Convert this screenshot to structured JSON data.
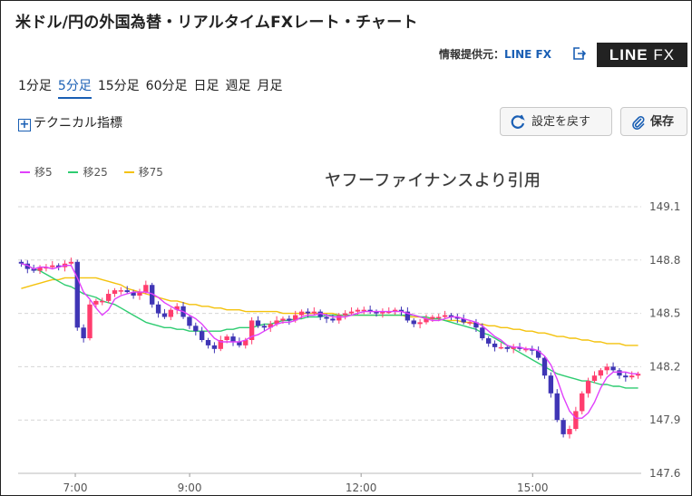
{
  "page": {
    "title": "米ドル/円の外国為替・リアルタイムFXレート・チャート",
    "provider_label": "情報提供元：",
    "provider_name": "LINE FX",
    "brand_logo_line": "LINE",
    "brand_logo_fx": "FX",
    "tabs": [
      {
        "label": "1分足",
        "active": false
      },
      {
        "label": "5分足",
        "active": true
      },
      {
        "label": "15分足",
        "active": false
      },
      {
        "label": "60分足",
        "active": false
      },
      {
        "label": "日足",
        "active": false
      },
      {
        "label": "週足",
        "active": false
      },
      {
        "label": "月足",
        "active": false
      }
    ],
    "technical_label": "テクニカル指標",
    "reset_label": "設定を戻す",
    "save_label": "保存",
    "watermark": "ヤフーファイナンスより引用",
    "colors": {
      "accent": "#1a5fb4",
      "up": "#ff3d6e",
      "down": "#3f35b5",
      "ma5": "#e040fb",
      "ma25": "#2ecc71",
      "ma75": "#f4c20d"
    }
  },
  "chart_data": {
    "type": "candlestick",
    "interval": "5分足",
    "x_ticks": [
      "7:00",
      "9:00",
      "12:00",
      "15:00"
    ],
    "x_tick_hours": [
      7,
      9,
      12,
      15
    ],
    "x_range_hours": [
      6.0,
      16.9
    ],
    "y_ticks": [
      149.1,
      148.8,
      148.5,
      148.2,
      147.9,
      147.6
    ],
    "ylim": [
      147.6,
      149.1
    ],
    "legend": [
      "移5",
      "移25",
      "移75"
    ],
    "close_series": [
      148.78,
      148.75,
      148.74,
      148.76,
      148.76,
      148.77,
      148.76,
      148.78,
      148.79,
      148.42,
      148.36,
      148.55,
      148.57,
      148.57,
      148.61,
      148.63,
      148.63,
      148.62,
      148.6,
      148.62,
      148.66,
      148.55,
      148.5,
      148.48,
      148.52,
      148.54,
      148.48,
      148.43,
      148.4,
      148.35,
      148.32,
      148.3,
      148.35,
      148.37,
      148.34,
      148.32,
      148.35,
      148.46,
      148.43,
      148.42,
      148.44,
      148.46,
      148.47,
      148.46,
      148.49,
      148.51,
      148.5,
      148.51,
      148.48,
      148.47,
      148.46,
      148.49,
      148.5,
      148.51,
      148.52,
      148.52,
      148.51,
      148.5,
      148.51,
      148.51,
      148.52,
      148.51,
      148.46,
      148.44,
      148.45,
      148.47,
      148.48,
      148.48,
      148.49,
      148.48,
      148.47,
      148.45,
      148.45,
      148.42,
      148.36,
      148.33,
      148.31,
      148.31,
      148.3,
      148.31,
      148.3,
      148.3,
      148.29,
      148.25,
      148.15,
      148.05,
      147.9,
      147.82,
      147.85,
      147.95,
      148.05,
      148.12,
      148.15,
      148.18,
      148.2,
      148.18,
      148.15,
      148.14,
      148.15,
      148.16
    ],
    "ma5": [
      148.78,
      148.77,
      148.75,
      148.76,
      148.76,
      148.75,
      148.76,
      148.77,
      148.77,
      148.7,
      148.62,
      148.58,
      148.53,
      148.49,
      148.52,
      148.58,
      148.6,
      148.61,
      148.62,
      148.62,
      148.62,
      148.61,
      148.59,
      148.56,
      148.54,
      148.52,
      148.51,
      148.49,
      148.47,
      148.44,
      148.4,
      148.36,
      148.34,
      148.34,
      148.34,
      148.34,
      148.35,
      148.37,
      148.38,
      148.4,
      148.42,
      148.44,
      148.45,
      148.45,
      148.46,
      148.48,
      148.49,
      148.49,
      148.5,
      148.49,
      148.48,
      148.48,
      148.48,
      148.49,
      148.5,
      148.51,
      148.51,
      148.51,
      148.51,
      148.51,
      148.51,
      148.51,
      148.5,
      148.49,
      148.48,
      148.47,
      148.46,
      148.46,
      148.47,
      148.48,
      148.48,
      148.47,
      148.46,
      148.45,
      148.43,
      148.4,
      148.37,
      148.35,
      148.32,
      148.31,
      148.31,
      148.3,
      148.3,
      148.29,
      148.26,
      148.21,
      148.13,
      148.03,
      147.95,
      147.91,
      147.91,
      147.94,
      148.0,
      148.08,
      148.14,
      148.17,
      148.17,
      148.17,
      148.16,
      148.16
    ],
    "ma25": [
      148.78,
      148.77,
      148.75,
      148.74,
      148.72,
      148.7,
      148.68,
      148.66,
      148.65,
      148.63,
      148.61,
      148.6,
      148.59,
      148.57,
      148.56,
      148.55,
      148.53,
      148.51,
      148.49,
      148.47,
      148.45,
      148.44,
      148.43,
      148.42,
      148.42,
      148.41,
      148.41,
      148.4,
      148.4,
      148.4,
      148.4,
      148.4,
      148.4,
      148.41,
      148.41,
      148.42,
      148.42,
      148.42,
      148.43,
      148.44,
      148.44,
      148.45,
      148.46,
      148.46,
      148.47,
      148.47,
      148.48,
      148.48,
      148.48,
      148.49,
      148.49,
      148.49,
      148.49,
      148.49,
      148.49,
      148.49,
      148.49,
      148.49,
      148.49,
      148.49,
      148.49,
      148.49,
      148.49,
      148.49,
      148.48,
      148.48,
      148.47,
      148.47,
      148.46,
      148.45,
      148.44,
      148.43,
      148.42,
      148.41,
      148.39,
      148.38,
      148.36,
      148.34,
      148.32,
      148.3,
      148.28,
      148.26,
      148.24,
      148.22,
      148.2,
      148.18,
      148.16,
      148.15,
      148.14,
      148.13,
      148.12,
      148.12,
      148.11,
      148.1,
      148.1,
      148.09,
      148.09,
      148.08,
      148.08,
      148.08
    ],
    "ma75": [
      148.64,
      148.65,
      148.66,
      148.67,
      148.68,
      148.69,
      148.69,
      148.7,
      148.7,
      148.7,
      148.7,
      148.7,
      148.7,
      148.69,
      148.68,
      148.67,
      148.66,
      148.64,
      148.63,
      148.62,
      148.61,
      148.6,
      148.59,
      148.58,
      148.57,
      148.57,
      148.56,
      148.55,
      148.55,
      148.54,
      148.54,
      148.53,
      148.53,
      148.52,
      148.52,
      148.52,
      148.51,
      148.51,
      148.51,
      148.51,
      148.51,
      148.51,
      148.5,
      148.5,
      148.5,
      148.5,
      148.5,
      148.5,
      148.5,
      148.5,
      148.5,
      148.49,
      148.49,
      148.49,
      148.49,
      148.49,
      148.49,
      148.49,
      148.49,
      148.49,
      148.49,
      148.49,
      148.48,
      148.48,
      148.48,
      148.47,
      148.47,
      148.47,
      148.46,
      148.46,
      148.46,
      148.45,
      148.45,
      148.44,
      148.44,
      148.43,
      148.43,
      148.42,
      148.42,
      148.41,
      148.41,
      148.4,
      148.4,
      148.39,
      148.39,
      148.38,
      148.37,
      148.37,
      148.36,
      148.36,
      148.35,
      148.35,
      148.34,
      148.34,
      148.33,
      148.33,
      148.33,
      148.32,
      148.32,
      148.32
    ],
    "grid": true,
    "legend_position": "top-left"
  }
}
